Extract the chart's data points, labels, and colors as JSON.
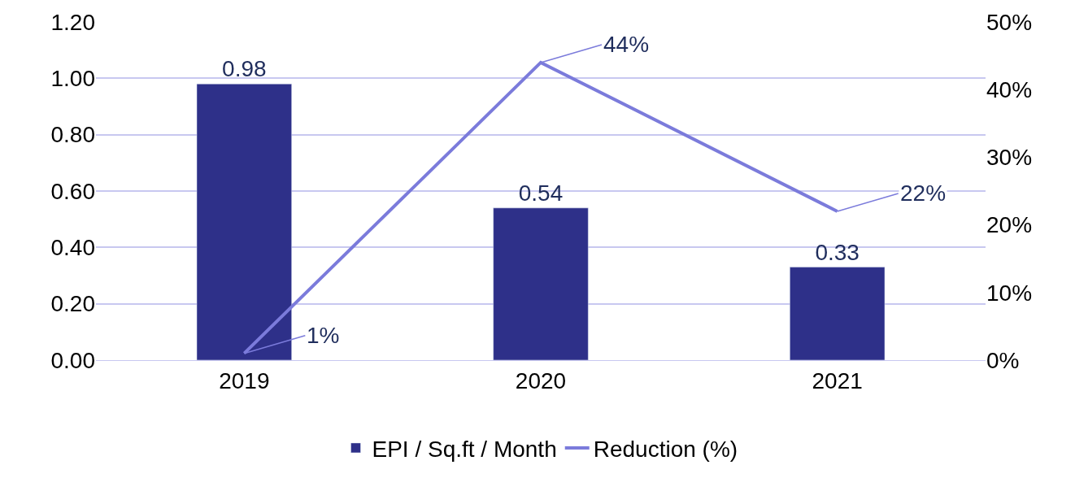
{
  "chart_data": {
    "type": "bar",
    "categories": [
      "2019",
      "2020",
      "2021"
    ],
    "series": [
      {
        "name": "EPI / Sq.ft / Month",
        "color": "#2e3089",
        "values": [
          0.98,
          0.54,
          0.33
        ],
        "value_labels": [
          "0.98",
          "0.54",
          "0.33"
        ]
      },
      {
        "name": "Reduction (%)",
        "type": "line",
        "axis": "y2",
        "color": "#7b7bdb",
        "values": [
          1,
          44,
          22
        ],
        "value_labels": [
          "1%",
          "44%",
          "22%"
        ]
      }
    ],
    "ylim": [
      0,
      1.2
    ],
    "yticks": [
      {
        "value": 0,
        "label": "0.00"
      },
      {
        "value": 0.2,
        "label": "0.20"
      },
      {
        "value": 0.4,
        "label": "0.40"
      },
      {
        "value": 0.6,
        "label": "0.60"
      },
      {
        "value": 0.8,
        "label": "0.80"
      },
      {
        "value": 1,
        "label": "1.00"
      },
      {
        "value": 1.2,
        "label": "1.20"
      }
    ],
    "y2lim": [
      0,
      50
    ],
    "y2ticks": [
      {
        "value": 0,
        "label": "0%"
      },
      {
        "value": 10,
        "label": "10%"
      },
      {
        "value": 20,
        "label": "20%"
      },
      {
        "value": 30,
        "label": "30%"
      },
      {
        "value": 40,
        "label": "40%"
      },
      {
        "value": 50,
        "label": "50%"
      }
    ],
    "grid": "y",
    "legend": "bottom",
    "marker": "none",
    "line_style": "solid"
  }
}
